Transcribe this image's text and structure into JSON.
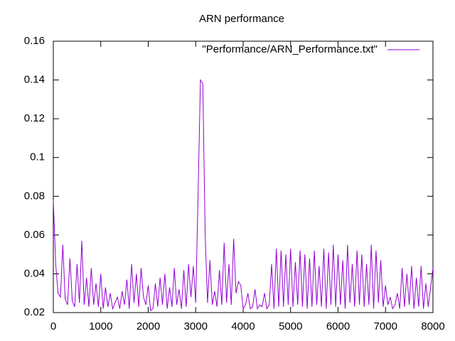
{
  "chart_data": {
    "type": "line",
    "title": "ARN performance",
    "x": [
      0,
      50,
      100,
      150,
      200,
      250,
      300,
      350,
      400,
      450,
      500,
      550,
      600,
      650,
      700,
      750,
      800,
      850,
      900,
      950,
      1000,
      1050,
      1100,
      1150,
      1200,
      1250,
      1300,
      1350,
      1400,
      1450,
      1500,
      1550,
      1600,
      1650,
      1700,
      1750,
      1800,
      1850,
      1900,
      1950,
      2000,
      2050,
      2100,
      2150,
      2200,
      2250,
      2300,
      2350,
      2400,
      2450,
      2500,
      2550,
      2600,
      2650,
      2700,
      2750,
      2800,
      2850,
      2900,
      2950,
      3000,
      3050,
      3100,
      3150,
      3200,
      3250,
      3300,
      3350,
      3400,
      3450,
      3500,
      3550,
      3600,
      3650,
      3700,
      3750,
      3800,
      3850,
      3900,
      3950,
      4000,
      4050,
      4100,
      4150,
      4200,
      4250,
      4300,
      4350,
      4400,
      4450,
      4500,
      4550,
      4600,
      4650,
      4700,
      4750,
      4800,
      4850,
      4900,
      4950,
      5000,
      5050,
      5100,
      5150,
      5200,
      5250,
      5300,
      5350,
      5400,
      5450,
      5500,
      5550,
      5600,
      5650,
      5700,
      5750,
      5800,
      5850,
      5900,
      5950,
      6000,
      6050,
      6100,
      6150,
      6200,
      6250,
      6300,
      6350,
      6400,
      6450,
      6500,
      6550,
      6600,
      6650,
      6700,
      6750,
      6800,
      6850,
      6900,
      6950,
      7000,
      7050,
      7100,
      7150,
      7200,
      7250,
      7300,
      7350,
      7400,
      7450,
      7500,
      7550,
      7600,
      7650,
      7700,
      7750,
      7800,
      7850,
      7900,
      7950,
      8000
    ],
    "series": [
      {
        "name": "\"Performance/ARN_Performance.txt\"",
        "color": "#9400d3",
        "values": [
          0.078,
          0.045,
          0.03,
          0.028,
          0.055,
          0.027,
          0.024,
          0.048,
          0.026,
          0.023,
          0.045,
          0.025,
          0.057,
          0.024,
          0.038,
          0.023,
          0.043,
          0.024,
          0.035,
          0.023,
          0.04,
          0.022,
          0.033,
          0.023,
          0.03,
          0.022,
          0.025,
          0.028,
          0.022,
          0.031,
          0.024,
          0.037,
          0.022,
          0.045,
          0.025,
          0.04,
          0.023,
          0.043,
          0.028,
          0.024,
          0.034,
          0.021,
          0.022,
          0.035,
          0.023,
          0.038,
          0.024,
          0.04,
          0.022,
          0.033,
          0.023,
          0.043,
          0.024,
          0.032,
          0.022,
          0.042,
          0.023,
          0.045,
          0.028,
          0.044,
          0.025,
          0.08,
          0.14,
          0.138,
          0.06,
          0.025,
          0.047,
          0.024,
          0.031,
          0.023,
          0.042,
          0.024,
          0.056,
          0.025,
          0.045,
          0.024,
          0.058,
          0.03,
          0.036,
          0.034,
          0.022,
          0.024,
          0.03,
          0.022,
          0.023,
          0.032,
          0.022,
          0.024,
          0.023,
          0.03,
          0.022,
          0.024,
          0.045,
          0.022,
          0.053,
          0.023,
          0.052,
          0.023,
          0.05,
          0.024,
          0.053,
          0.023,
          0.046,
          0.024,
          0.052,
          0.023,
          0.05,
          0.022,
          0.048,
          0.023,
          0.052,
          0.024,
          0.044,
          0.023,
          0.053,
          0.022,
          0.051,
          0.024,
          0.055,
          0.023,
          0.05,
          0.024,
          0.047,
          0.022,
          0.055,
          0.025,
          0.045,
          0.023,
          0.052,
          0.024,
          0.05,
          0.023,
          0.045,
          0.024,
          0.055,
          0.022,
          0.052,
          0.025,
          0.047,
          0.023,
          0.034,
          0.024,
          0.028,
          0.022,
          0.024,
          0.03,
          0.022,
          0.043,
          0.023,
          0.04,
          0.024,
          0.044,
          0.022,
          0.038,
          0.023,
          0.044,
          0.022,
          0.035,
          0.023,
          0.033,
          0.043
        ]
      }
    ],
    "xlim": [
      0,
      8000
    ],
    "xticks": [
      0,
      1000,
      2000,
      3000,
      4000,
      5000,
      6000,
      7000,
      8000
    ],
    "ylim": [
      0.02,
      0.16
    ],
    "yticks": [
      0.02,
      0.04,
      0.06,
      0.08,
      0.1,
      0.12,
      0.14,
      0.16
    ],
    "legend": "top-right"
  }
}
